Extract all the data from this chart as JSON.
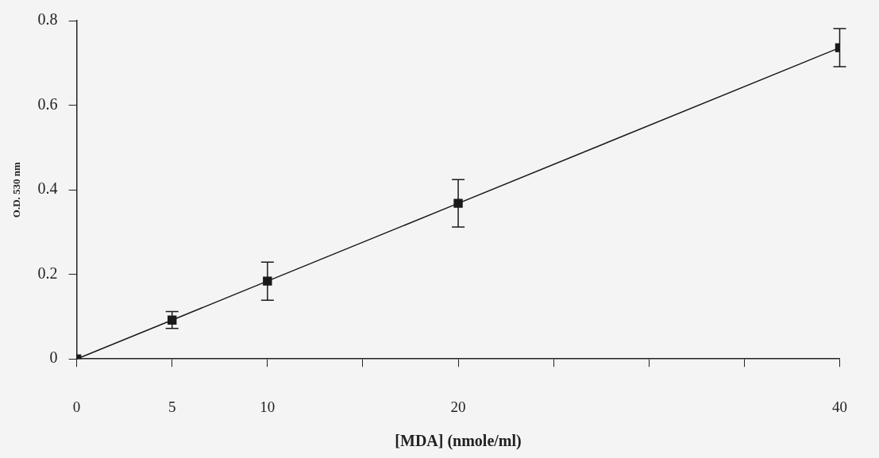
{
  "chart_data": {
    "type": "line",
    "xlabel": "[MDA] (nmole/ml)",
    "ylabel": "O.D. 530 nm",
    "x": [
      0,
      5,
      10,
      20,
      40
    ],
    "series": [
      {
        "color": "#1a1a1a",
        "values": [
          0,
          0.092,
          0.184,
          0.368,
          0.736
        ],
        "errors": [
          null,
          0.02,
          0.045,
          0.056,
          0.045
        ]
      }
    ],
    "xlim": [
      0,
      40
    ],
    "xticks": [
      0,
      5,
      10,
      {
        "value": 15,
        "label": null
      },
      20,
      {
        "value": 25,
        "label": null
      },
      {
        "value": 30,
        "label": null
      },
      {
        "value": 35,
        "label": null
      },
      40
    ],
    "ylim": [
      0,
      0.8
    ],
    "yticks": [
      0,
      0.2,
      0.4,
      0.6,
      0.8
    ],
    "grid": false,
    "legend": false,
    "marker": "square",
    "line_style": "solid"
  }
}
